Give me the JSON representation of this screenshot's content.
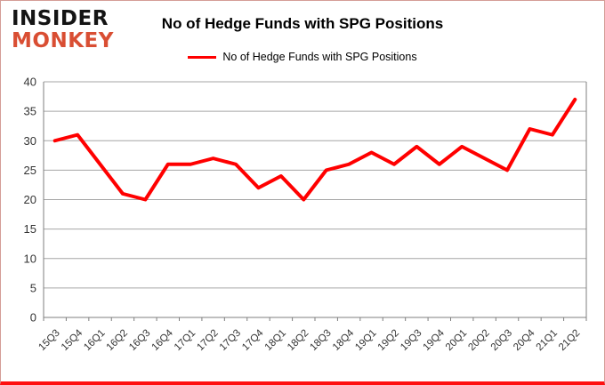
{
  "logo": {
    "line1": "INSIDER",
    "line2": "MONKEY"
  },
  "header": {
    "title": "No of Hedge Funds with SPG Positions"
  },
  "legend": {
    "label": "No of Hedge Funds with SPG Positions"
  },
  "colors": {
    "series": "#ff0000",
    "gridline": "#a6a6a6",
    "axis": "#7f7f7f",
    "tick_label": "#333333",
    "logo_black": "#141414",
    "logo_accent": "#d94e33",
    "border_bottom": "#fe1010"
  },
  "chart_data": {
    "type": "line",
    "title": "No of Hedge Funds with SPG Positions",
    "categories": [
      "15Q3",
      "15Q4",
      "16Q1",
      "16Q2",
      "16Q3",
      "16Q4",
      "17Q1",
      "17Q2",
      "17Q3",
      "17Q4",
      "18Q1",
      "18Q2",
      "18Q3",
      "18Q4",
      "19Q1",
      "19Q2",
      "19Q3",
      "19Q4",
      "20Q1",
      "20Q2",
      "20Q3",
      "20Q4",
      "21Q1",
      "21Q2"
    ],
    "series": [
      {
        "name": "No of Hedge Funds with SPG Positions",
        "values": [
          30,
          31,
          26,
          21,
          20,
          26,
          26,
          27,
          26,
          22,
          24,
          20,
          25,
          26,
          28,
          26,
          29,
          26,
          29,
          27,
          25,
          32,
          31,
          37
        ]
      }
    ],
    "xlabel": "",
    "ylabel": "",
    "ylim": [
      0,
      40
    ],
    "ytick_step": 5,
    "grid": true,
    "legend_position": "top-center"
  }
}
